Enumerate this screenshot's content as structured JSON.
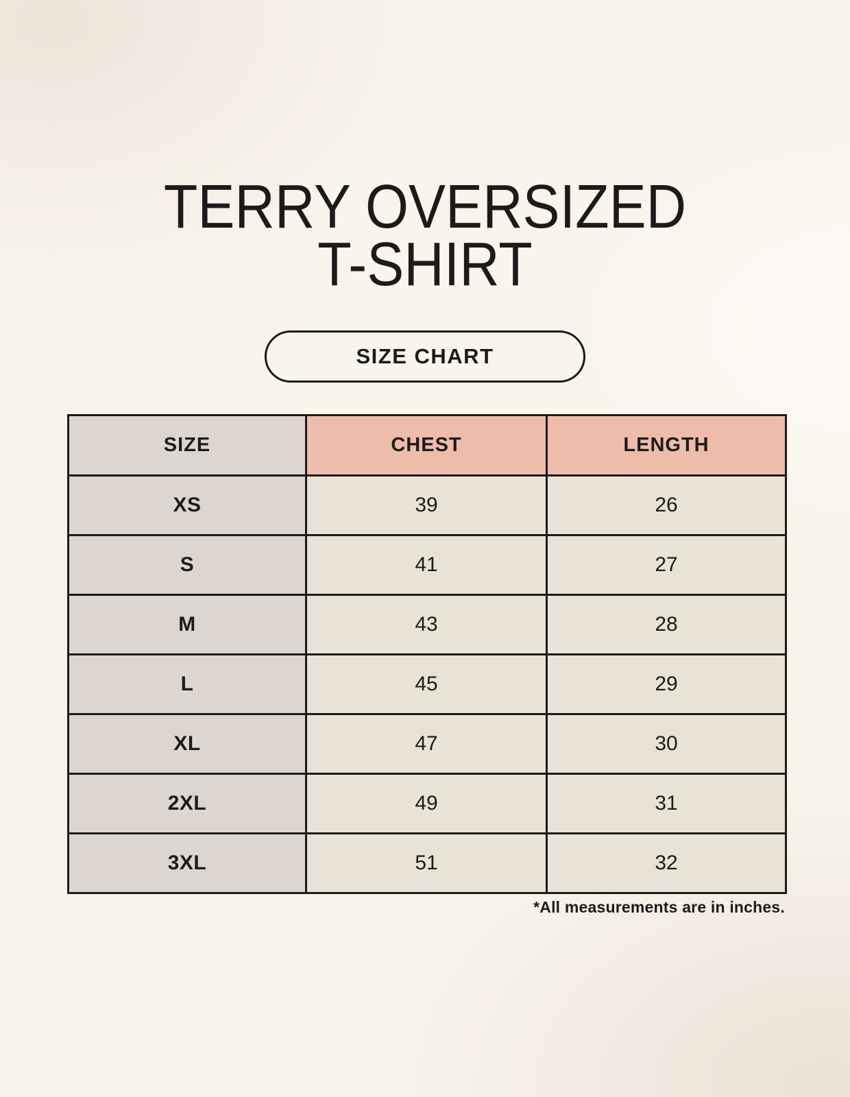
{
  "title": {
    "line1": "TERRY OVERSIZED",
    "line2": "T-SHIRT"
  },
  "size_chart_button": {
    "label": "SIZE CHART"
  },
  "table": {
    "headers": [
      "SIZE",
      "CHEST",
      "LENGTH"
    ],
    "rows": [
      {
        "size": "XS",
        "chest": "39",
        "length": "26"
      },
      {
        "size": "S",
        "chest": "41",
        "length": "27"
      },
      {
        "size": "M",
        "chest": "43",
        "length": "28"
      },
      {
        "size": "L",
        "chest": "45",
        "length": "29"
      },
      {
        "size": "XL",
        "chest": "47",
        "length": "30"
      },
      {
        "size": "2XL",
        "chest": "49",
        "length": "31"
      },
      {
        "size": "3XL",
        "chest": "51",
        "length": "32"
      }
    ]
  },
  "footnote": "*All measurements are in inches.",
  "colors": {
    "background": "#f9f4ec",
    "header_pink": "#eebcaa",
    "size_column_gray": "#dcd5d0",
    "cell_cream": "#e9e2d7",
    "ink": "#1c1b1a"
  },
  "chart_data": {
    "type": "table",
    "title": "TERRY OVERSIZED T-SHIRT",
    "subtitle": "SIZE CHART",
    "columns": [
      "SIZE",
      "CHEST",
      "LENGTH"
    ],
    "rows": [
      [
        "XS",
        39,
        26
      ],
      [
        "S",
        41,
        27
      ],
      [
        "M",
        43,
        28
      ],
      [
        "L",
        45,
        29
      ],
      [
        "XL",
        47,
        30
      ],
      [
        "2XL",
        49,
        31
      ],
      [
        "3XL",
        51,
        32
      ]
    ],
    "note": "*All measurements are in inches."
  }
}
